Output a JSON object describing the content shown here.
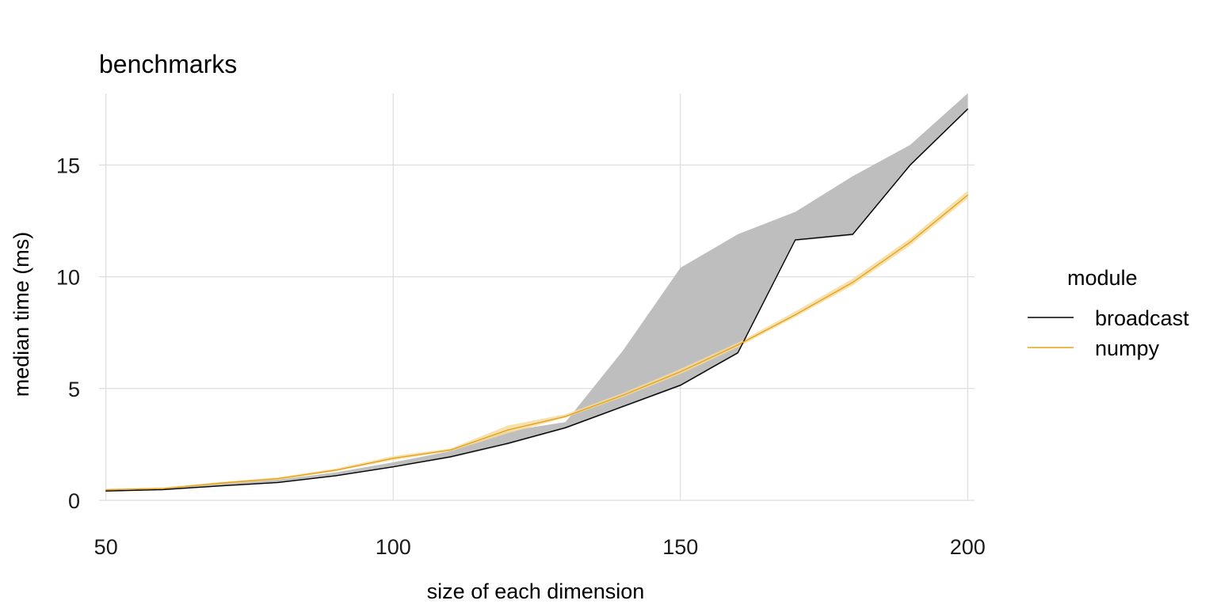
{
  "chart_data": {
    "type": "line",
    "title": "benchmarks",
    "xlabel": "size of each dimension",
    "ylabel": "median time (ms)",
    "x": [
      50,
      60,
      70,
      80,
      90,
      100,
      110,
      120,
      130,
      140,
      150,
      160,
      170,
      180,
      190,
      200
    ],
    "xlim": [
      48.8,
      201.2
    ],
    "ylim": [
      0,
      18.2
    ],
    "xticks": [
      50,
      100,
      150,
      200
    ],
    "yticks": [
      0,
      5,
      10,
      15
    ],
    "grid": true,
    "legend": {
      "title": "module",
      "position": "right"
    },
    "series": [
      {
        "name": "broadcast",
        "color": "#000000",
        "band_color": "#bebebe",
        "values": [
          0.42,
          0.48,
          0.65,
          0.8,
          1.1,
          1.5,
          1.95,
          2.55,
          3.25,
          4.2,
          5.15,
          6.6,
          11.65,
          11.9,
          15.0,
          17.5
        ],
        "band_lower": [
          0.38,
          0.45,
          0.62,
          0.77,
          1.07,
          1.47,
          1.9,
          2.5,
          3.2,
          4.15,
          5.1,
          6.55,
          11.6,
          11.85,
          14.95,
          17.45
        ],
        "band_upper": [
          0.5,
          0.56,
          0.75,
          0.92,
          1.25,
          1.7,
          2.2,
          3.1,
          3.5,
          6.7,
          10.4,
          11.9,
          12.9,
          14.5,
          15.9,
          18.2
        ]
      },
      {
        "name": "numpy",
        "color": "#e6a21a",
        "band_color": "#f5dc9e",
        "values": [
          0.47,
          0.53,
          0.77,
          0.97,
          1.35,
          1.88,
          2.25,
          3.15,
          3.75,
          4.7,
          5.75,
          6.95,
          8.3,
          9.75,
          11.55,
          13.65
        ],
        "band_lower": [
          0.44,
          0.5,
          0.72,
          0.92,
          1.3,
          1.8,
          2.2,
          3.0,
          3.7,
          4.62,
          5.65,
          6.85,
          8.2,
          9.62,
          11.4,
          13.5
        ],
        "band_upper": [
          0.52,
          0.57,
          0.82,
          1.03,
          1.42,
          1.98,
          2.32,
          3.35,
          3.85,
          4.8,
          5.88,
          7.05,
          8.45,
          9.92,
          11.72,
          13.85
        ]
      }
    ]
  }
}
